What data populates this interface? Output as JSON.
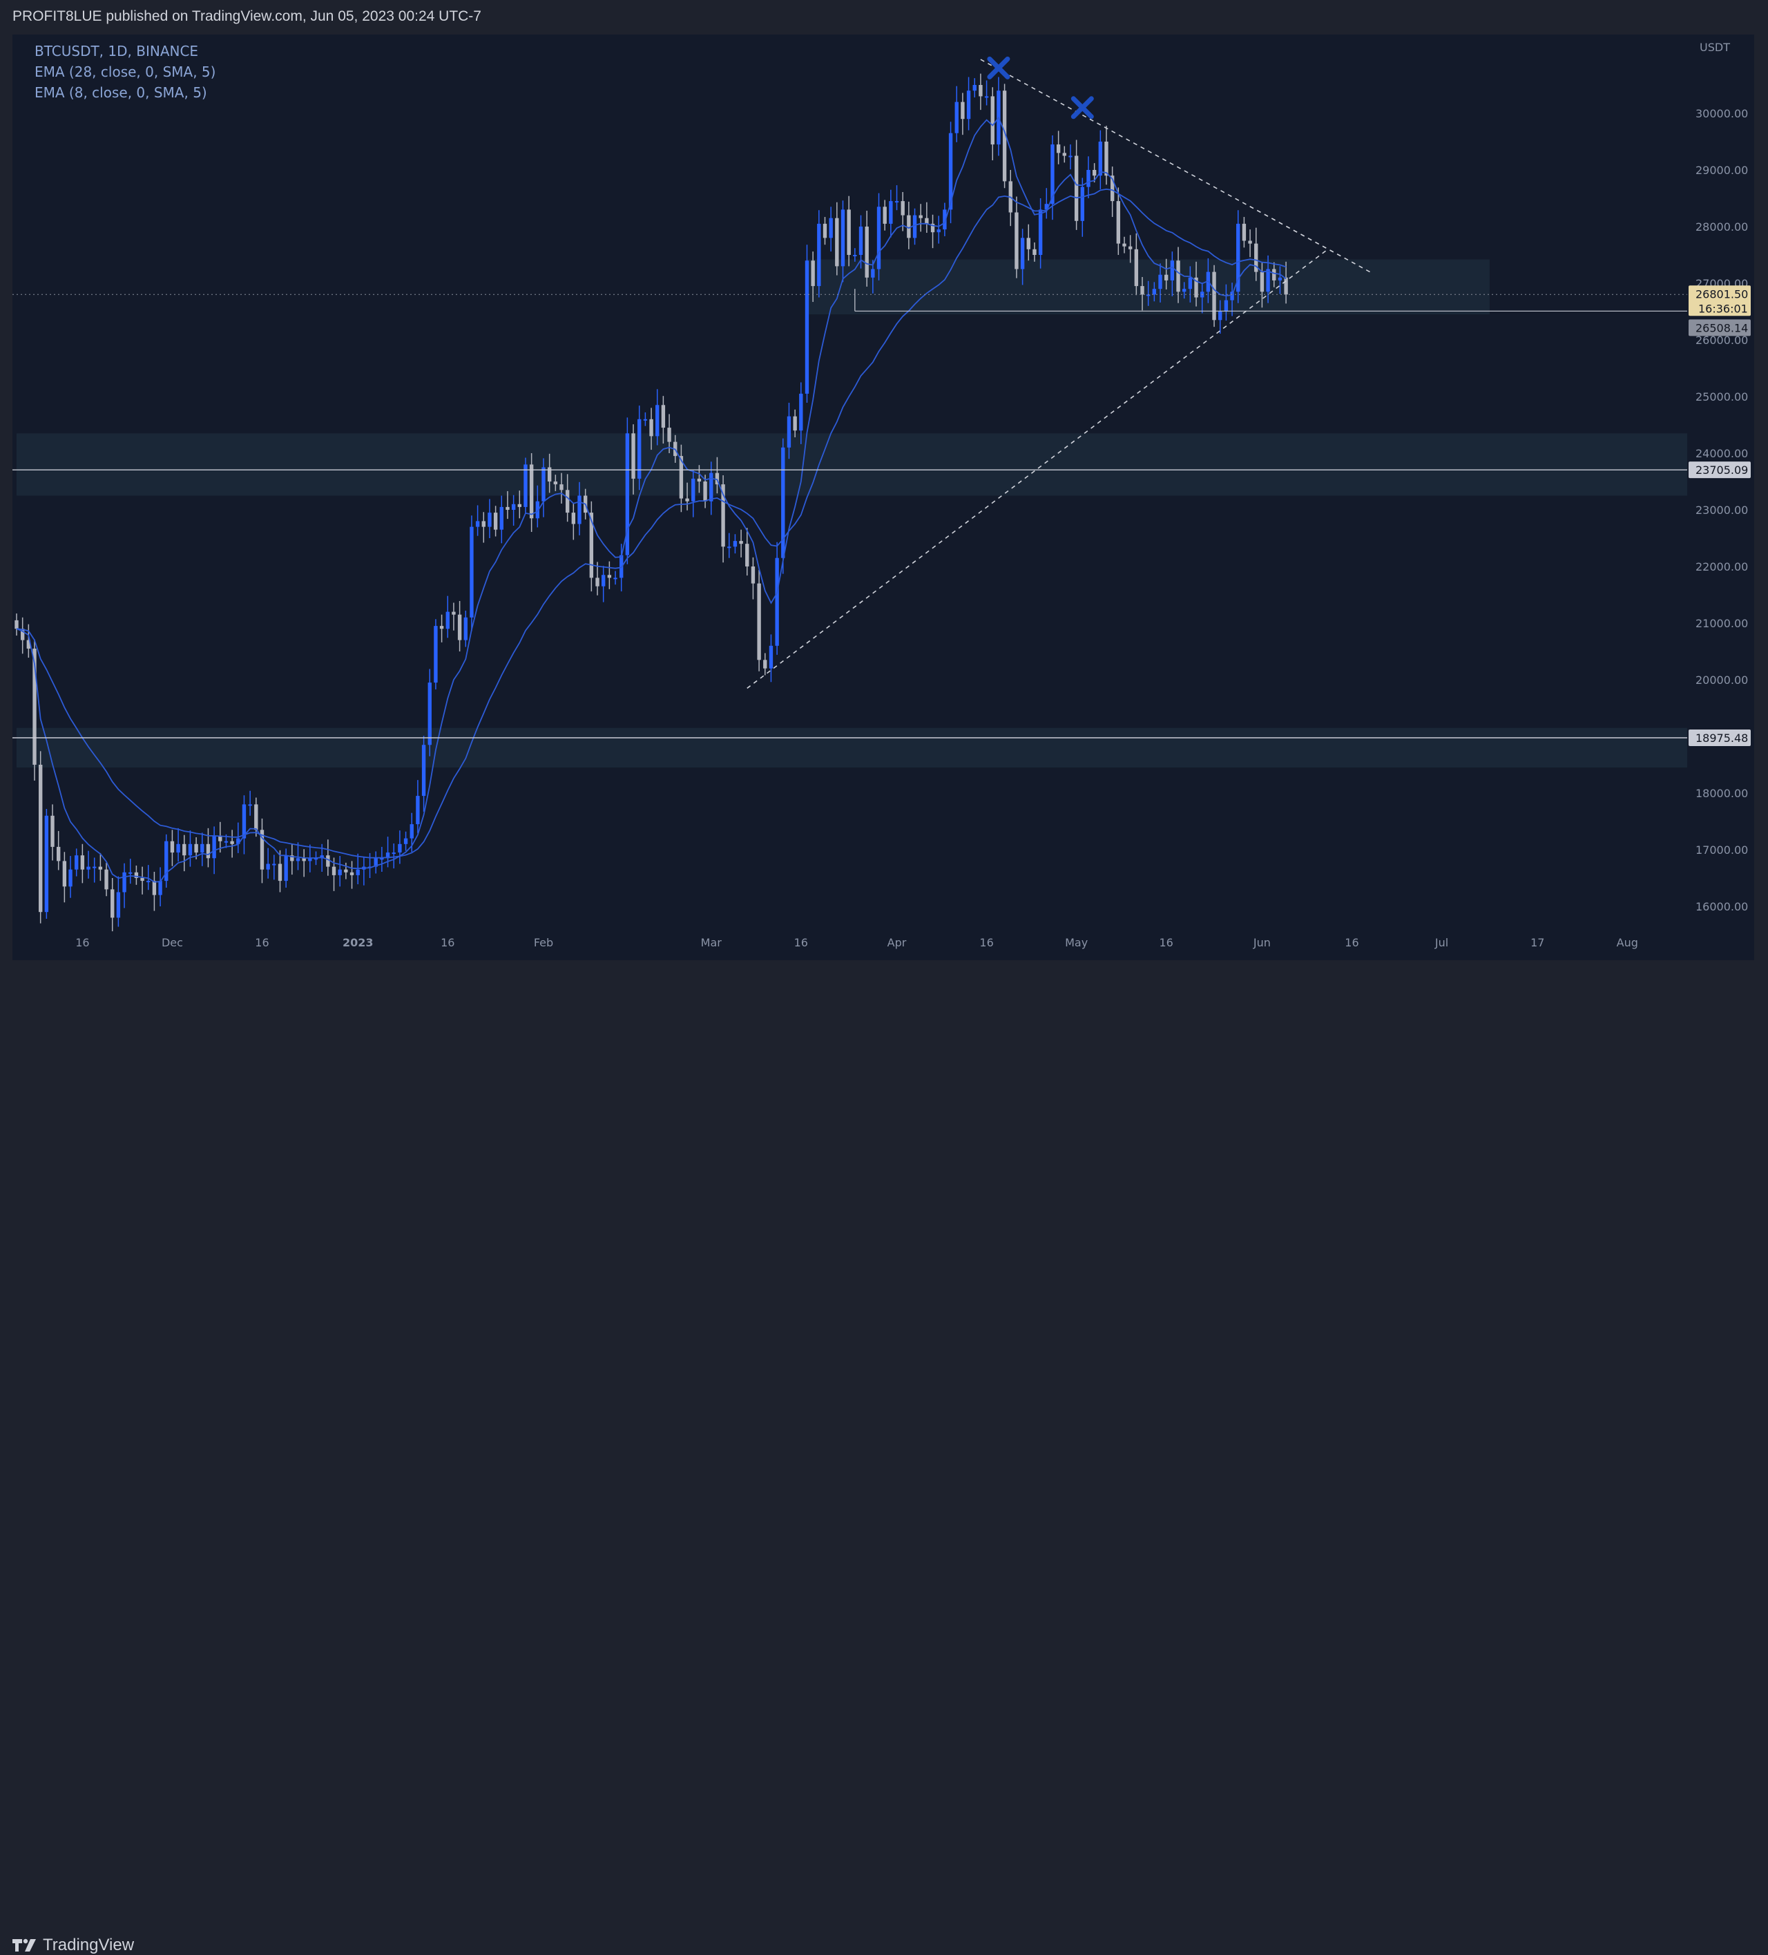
{
  "header": {
    "publish_text": "PROFIT8LUE published on TradingView.com, Jun 05, 2023 00:24 UTC-7"
  },
  "footer": {
    "brand": "TradingView"
  },
  "legend": {
    "symbol": "BTCUSDT, 1D, BINANCE",
    "ema28": "EMA (28, close, 0, SMA, 5)",
    "ema8": "EMA (8, close, 0, SMA, 5)"
  },
  "colors": {
    "background": "#131a2a",
    "up_candle": "#2962ff",
    "down_candle": "#b2b5be",
    "ema": "#2d5bd6",
    "marker": "#1d4fc4",
    "zone": "#1c2a3a"
  },
  "chart_data": {
    "type": "candlestick",
    "currency_label": "USDT",
    "ylim": [
      15400,
      30800
    ],
    "y_ticks": [
      16000,
      17000,
      18000,
      19000,
      20000,
      21000,
      22000,
      23000,
      24000,
      25000,
      26000,
      27000,
      28000,
      29000,
      30000
    ],
    "y_tick_labels": [
      "16000.00",
      "17000.00",
      "18000.00",
      "19000.00",
      "20000.00",
      "21000.00",
      "22000.00",
      "23000.00",
      "24000.00",
      "25000.00",
      "26000.00",
      "27000.00",
      "28000.00",
      "29000.00",
      "30000.00"
    ],
    "x_range": [
      "2022-11-05",
      "2023-08-11"
    ],
    "x_ticks": [
      {
        "date": "2022-11-16",
        "label": "16"
      },
      {
        "date": "2022-12-01",
        "label": "Dec"
      },
      {
        "date": "2022-12-16",
        "label": "16"
      },
      {
        "date": "2023-01-01",
        "label": "2023"
      },
      {
        "date": "2023-01-16",
        "label": "16"
      },
      {
        "date": "2023-02-01",
        "label": "Feb"
      },
      {
        "date": "2023-03-01",
        "label": "Mar"
      },
      {
        "date": "2023-03-16",
        "label": "16"
      },
      {
        "date": "2023-04-01",
        "label": "Apr"
      },
      {
        "date": "2023-04-16",
        "label": "16"
      },
      {
        "date": "2023-05-01",
        "label": "May"
      },
      {
        "date": "2023-05-16",
        "label": "16"
      },
      {
        "date": "2023-06-01",
        "label": "Jun"
      },
      {
        "date": "2023-06-16",
        "label": "16"
      },
      {
        "date": "2023-07-01",
        "label": "Jul"
      },
      {
        "date": "2023-07-17",
        "label": "17"
      },
      {
        "date": "2023-08-01",
        "label": "Aug"
      }
    ],
    "price_tags": [
      {
        "value": 26801.5,
        "label": "26801.50",
        "sub": "16:36:01",
        "kind": "last"
      },
      {
        "value": 26508.14,
        "label": "26508.14",
        "kind": "level"
      },
      {
        "value": 23705.09,
        "label": "23705.09",
        "kind": "level"
      },
      {
        "value": 18975.48,
        "label": "18975.48",
        "kind": "level"
      }
    ],
    "zones": [
      {
        "from": "2023-03-17",
        "to": "2023-07-09",
        "low": 26450,
        "high": 27420
      },
      {
        "from": "2022-11-05",
        "to": "2023-08-11",
        "low": 23250,
        "high": 24350
      },
      {
        "from": "2022-11-05",
        "to": "2023-08-11",
        "low": 18450,
        "high": 19150
      }
    ],
    "horizontal_lines": [
      23705.09,
      18975.48
    ],
    "short_line": {
      "from": "2023-03-25",
      "to": "2023-08-11",
      "value": 26508.14
    },
    "trendlines": [
      {
        "x1": "2023-03-07",
        "y1": 19850,
        "x2": "2023-06-12",
        "y2": 27600
      },
      {
        "x1": "2023-04-15",
        "y1": 30950,
        "x2": "2023-06-19",
        "y2": 27200
      }
    ],
    "markers": [
      {
        "date": "2023-04-18",
        "value": 30800
      },
      {
        "date": "2023-05-02",
        "value": 30100
      }
    ],
    "candles_close": [
      [
        "2022-11-05",
        20900
      ],
      [
        "2022-11-06",
        20700
      ],
      [
        "2022-11-07",
        20550
      ],
      [
        "2022-11-08",
        18500
      ],
      [
        "2022-11-09",
        15900
      ],
      [
        "2022-11-10",
        17600
      ],
      [
        "2022-11-11",
        17050
      ],
      [
        "2022-11-12",
        16800
      ],
      [
        "2022-11-13",
        16350
      ],
      [
        "2022-11-14",
        16650
      ],
      [
        "2022-11-15",
        16900
      ],
      [
        "2022-11-16",
        16650
      ],
      [
        "2022-11-17",
        16700
      ],
      [
        "2022-11-18",
        16700
      ],
      [
        "2022-11-19",
        16650
      ],
      [
        "2022-11-20",
        16300
      ],
      [
        "2022-11-21",
        15800
      ],
      [
        "2022-11-22",
        16250
      ],
      [
        "2022-11-23",
        16600
      ],
      [
        "2022-11-24",
        16600
      ],
      [
        "2022-11-25",
        16500
      ],
      [
        "2022-11-26",
        16450
      ],
      [
        "2022-11-27",
        16450
      ],
      [
        "2022-11-28",
        16200
      ],
      [
        "2022-11-29",
        16450
      ],
      [
        "2022-11-30",
        17150
      ],
      [
        "2022-12-01",
        16950
      ],
      [
        "2022-12-02",
        17100
      ],
      [
        "2022-12-03",
        16900
      ],
      [
        "2022-12-04",
        17100
      ],
      [
        "2022-12-05",
        16950
      ],
      [
        "2022-12-06",
        17100
      ],
      [
        "2022-12-07",
        16850
      ],
      [
        "2022-12-08",
        17250
      ],
      [
        "2022-12-09",
        17150
      ],
      [
        "2022-12-10",
        17150
      ],
      [
        "2022-12-11",
        17100
      ],
      [
        "2022-12-12",
        17200
      ],
      [
        "2022-12-13",
        17800
      ],
      [
        "2022-12-14",
        17800
      ],
      [
        "2022-12-15",
        17350
      ],
      [
        "2022-12-16",
        16650
      ],
      [
        "2022-12-17",
        16750
      ],
      [
        "2022-12-18",
        16750
      ],
      [
        "2022-12-19",
        16450
      ],
      [
        "2022-12-20",
        16900
      ],
      [
        "2022-12-21",
        16800
      ],
      [
        "2022-12-22",
        16850
      ],
      [
        "2022-12-23",
        16800
      ],
      [
        "2022-12-24",
        16850
      ],
      [
        "2022-12-25",
        16850
      ],
      [
        "2022-12-26",
        16900
      ],
      [
        "2022-12-27",
        16700
      ],
      [
        "2022-12-28",
        16550
      ],
      [
        "2022-12-29",
        16650
      ],
      [
        "2022-12-30",
        16600
      ],
      [
        "2022-12-31",
        16550
      ],
      [
        "2023-01-01",
        16650
      ],
      [
        "2023-01-02",
        16700
      ],
      [
        "2023-01-03",
        16700
      ],
      [
        "2023-01-04",
        16850
      ],
      [
        "2023-01-05",
        16850
      ],
      [
        "2023-01-06",
        16950
      ],
      [
        "2023-01-07",
        16950
      ],
      [
        "2023-01-08",
        17100
      ],
      [
        "2023-01-09",
        17200
      ],
      [
        "2023-01-10",
        17450
      ],
      [
        "2023-01-11",
        17950
      ],
      [
        "2023-01-12",
        18850
      ],
      [
        "2023-01-13",
        19950
      ],
      [
        "2023-01-14",
        20950
      ],
      [
        "2023-01-15",
        20900
      ],
      [
        "2023-01-16",
        21200
      ],
      [
        "2023-01-17",
        21150
      ],
      [
        "2023-01-18",
        20700
      ],
      [
        "2023-01-19",
        21100
      ],
      [
        "2023-01-20",
        22700
      ],
      [
        "2023-01-21",
        22800
      ],
      [
        "2023-01-22",
        22700
      ],
      [
        "2023-01-23",
        22950
      ],
      [
        "2023-01-24",
        22650
      ],
      [
        "2023-01-25",
        23050
      ],
      [
        "2023-01-26",
        23000
      ],
      [
        "2023-01-27",
        23100
      ],
      [
        "2023-01-28",
        23050
      ],
      [
        "2023-01-29",
        23800
      ],
      [
        "2023-01-30",
        22850
      ],
      [
        "2023-01-31",
        23150
      ],
      [
        "2023-02-01",
        23750
      ],
      [
        "2023-02-02",
        23500
      ],
      [
        "2023-02-03",
        23450
      ],
      [
        "2023-02-04",
        23350
      ],
      [
        "2023-02-05",
        22950
      ],
      [
        "2023-02-06",
        22750
      ],
      [
        "2023-02-07",
        23250
      ],
      [
        "2023-02-08",
        22950
      ],
      [
        "2023-02-09",
        21800
      ],
      [
        "2023-02-10",
        21650
      ],
      [
        "2023-02-11",
        21850
      ],
      [
        "2023-02-12",
        21800
      ],
      [
        "2023-02-13",
        21800
      ],
      [
        "2023-02-14",
        22200
      ],
      [
        "2023-02-15",
        24350
      ],
      [
        "2023-02-16",
        23550
      ],
      [
        "2023-02-17",
        24600
      ],
      [
        "2023-02-18",
        24600
      ],
      [
        "2023-02-19",
        24300
      ],
      [
        "2023-02-20",
        24850
      ],
      [
        "2023-02-21",
        24450
      ],
      [
        "2023-02-22",
        24200
      ],
      [
        "2023-02-23",
        23950
      ],
      [
        "2023-02-24",
        23200
      ],
      [
        "2023-02-25",
        23150
      ],
      [
        "2023-02-26",
        23550
      ],
      [
        "2023-02-27",
        23500
      ],
      [
        "2023-02-28",
        23150
      ],
      [
        "2023-03-01",
        23650
      ],
      [
        "2023-03-02",
        23450
      ],
      [
        "2023-03-03",
        22350
      ],
      [
        "2023-03-04",
        22350
      ],
      [
        "2023-03-05",
        22450
      ],
      [
        "2023-03-06",
        22400
      ],
      [
        "2023-03-07",
        22000
      ],
      [
        "2023-03-08",
        21700
      ],
      [
        "2023-03-09",
        20350
      ],
      [
        "2023-03-10",
        20200
      ],
      [
        "2023-03-11",
        20600
      ],
      [
        "2023-03-12",
        22150
      ],
      [
        "2023-03-13",
        24100
      ],
      [
        "2023-03-14",
        24650
      ],
      [
        "2023-03-15",
        24400
      ],
      [
        "2023-03-16",
        25050
      ],
      [
        "2023-03-17",
        27400
      ],
      [
        "2023-03-18",
        26950
      ],
      [
        "2023-03-19",
        28050
      ],
      [
        "2023-03-20",
        27800
      ],
      [
        "2023-03-21",
        28150
      ],
      [
        "2023-03-22",
        27300
      ],
      [
        "2023-03-23",
        28300
      ],
      [
        "2023-03-24",
        27500
      ],
      [
        "2023-03-25",
        27500
      ],
      [
        "2023-03-26",
        28000
      ],
      [
        "2023-03-27",
        27100
      ],
      [
        "2023-03-28",
        27250
      ],
      [
        "2023-03-29",
        28350
      ],
      [
        "2023-03-30",
        28050
      ],
      [
        "2023-03-31",
        28450
      ],
      [
        "2023-04-01",
        28450
      ],
      [
        "2023-04-02",
        28200
      ],
      [
        "2023-04-03",
        27800
      ],
      [
        "2023-04-04",
        28200
      ],
      [
        "2023-04-05",
        28150
      ],
      [
        "2023-04-06",
        28050
      ],
      [
        "2023-04-07",
        27900
      ],
      [
        "2023-04-08",
        27950
      ],
      [
        "2023-04-09",
        28300
      ],
      [
        "2023-04-10",
        29650
      ],
      [
        "2023-04-11",
        30200
      ],
      [
        "2023-04-12",
        29900
      ],
      [
        "2023-04-13",
        30400
      ],
      [
        "2023-04-14",
        30500
      ],
      [
        "2023-04-15",
        30300
      ],
      [
        "2023-04-16",
        30300
      ],
      [
        "2023-04-17",
        29450
      ],
      [
        "2023-04-18",
        30400
      ],
      [
        "2023-04-19",
        28800
      ],
      [
        "2023-04-20",
        28250
      ],
      [
        "2023-04-21",
        27250
      ],
      [
        "2023-04-22",
        27800
      ],
      [
        "2023-04-23",
        27600
      ],
      [
        "2023-04-24",
        27500
      ],
      [
        "2023-04-25",
        28300
      ],
      [
        "2023-04-26",
        28400
      ],
      [
        "2023-04-27",
        29450
      ],
      [
        "2023-04-28",
        29300
      ],
      [
        "2023-04-29",
        29250
      ],
      [
        "2023-04-30",
        29250
      ],
      [
        "2023-05-01",
        28100
      ],
      [
        "2023-05-02",
        28700
      ],
      [
        "2023-05-03",
        29000
      ],
      [
        "2023-05-04",
        28900
      ],
      [
        "2023-05-05",
        29500
      ],
      [
        "2023-05-06",
        28900
      ],
      [
        "2023-05-07",
        28450
      ],
      [
        "2023-05-08",
        27700
      ],
      [
        "2023-05-09",
        27650
      ],
      [
        "2023-05-10",
        27600
      ],
      [
        "2023-05-11",
        26950
      ],
      [
        "2023-05-12",
        26800
      ],
      [
        "2023-05-13",
        26800
      ],
      [
        "2023-05-14",
        26900
      ],
      [
        "2023-05-15",
        27150
      ],
      [
        "2023-05-16",
        27050
      ],
      [
        "2023-05-17",
        27400
      ],
      [
        "2023-05-18",
        26850
      ],
      [
        "2023-05-19",
        26900
      ],
      [
        "2023-05-20",
        27100
      ],
      [
        "2023-05-21",
        26750
      ],
      [
        "2023-05-22",
        26850
      ],
      [
        "2023-05-23",
        27200
      ],
      [
        "2023-05-24",
        26350
      ],
      [
        "2023-05-25",
        26500
      ],
      [
        "2023-05-26",
        26700
      ],
      [
        "2023-05-27",
        26850
      ],
      [
        "2023-05-28",
        28050
      ],
      [
        "2023-05-29",
        27750
      ],
      [
        "2023-05-30",
        27700
      ],
      [
        "2023-05-31",
        27200
      ],
      [
        "2023-06-01",
        26850
      ],
      [
        "2023-06-02",
        27250
      ],
      [
        "2023-06-03",
        27050
      ],
      [
        "2023-06-04",
        27100
      ],
      [
        "2023-06-05",
        26801.5
      ]
    ]
  }
}
